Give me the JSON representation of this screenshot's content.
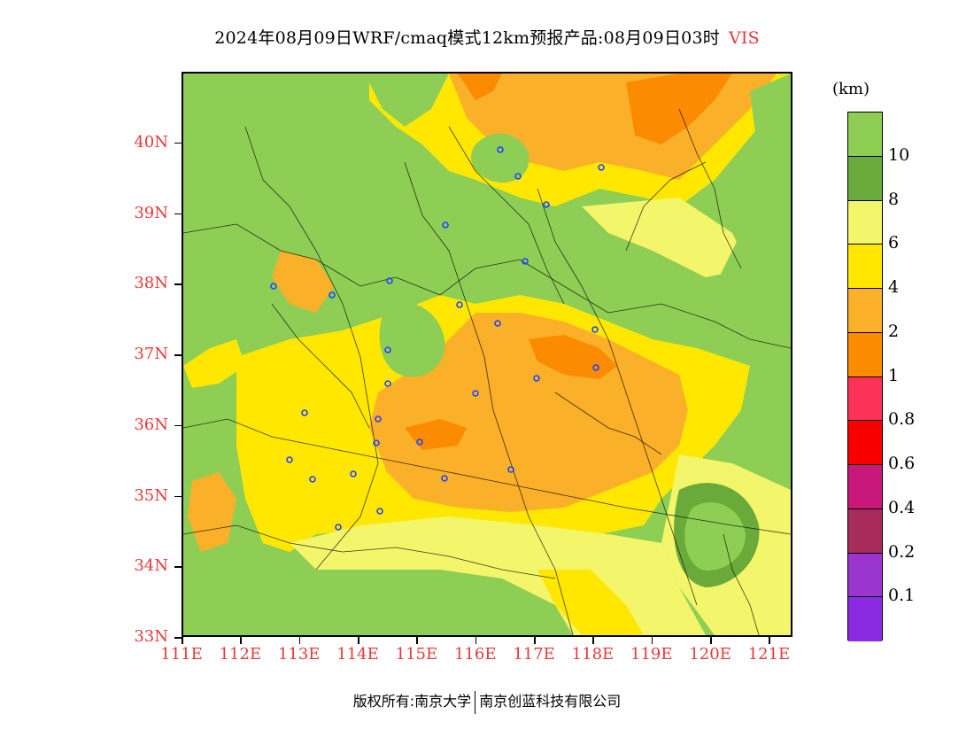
{
  "title": {
    "text": "2024年08月09日WRF/cmaq模式12km预报产品:08月09日03时",
    "variable": "VIS"
  },
  "axes": {
    "lat_labels": [
      "40N",
      "39N",
      "38N",
      "37N",
      "36N",
      "35N",
      "34N",
      "33N"
    ],
    "lat_values": [
      40,
      39,
      38,
      37,
      36,
      35,
      34,
      33
    ],
    "lon_labels": [
      "111E",
      "112E",
      "113E",
      "114E",
      "115E",
      "116E",
      "117E",
      "118E",
      "119E",
      "120E",
      "121E"
    ],
    "lon_values": [
      111,
      112,
      113,
      114,
      115,
      116,
      117,
      118,
      119,
      120,
      121
    ],
    "lat_range": [
      33,
      41
    ],
    "lon_range": [
      111,
      121.4
    ]
  },
  "colorbar": {
    "unit": "(km)",
    "labels": [
      "10",
      "8",
      "6",
      "4",
      "2",
      "1",
      "0.8",
      "0.6",
      "0.4",
      "0.2",
      "0.1"
    ],
    "colors": [
      "#8fce55",
      "#6aaa3a",
      "#f3f56a",
      "#ffe700",
      "#fbb02a",
      "#fb8b00",
      "#fb3358",
      "#f90000",
      "#c8187a",
      "#a72c5c",
      "#9b35d0",
      "#8a2be2"
    ]
  },
  "footer": {
    "left": "版权所有:南京大学",
    "right": "南京创蓝科技有限公司"
  }
}
